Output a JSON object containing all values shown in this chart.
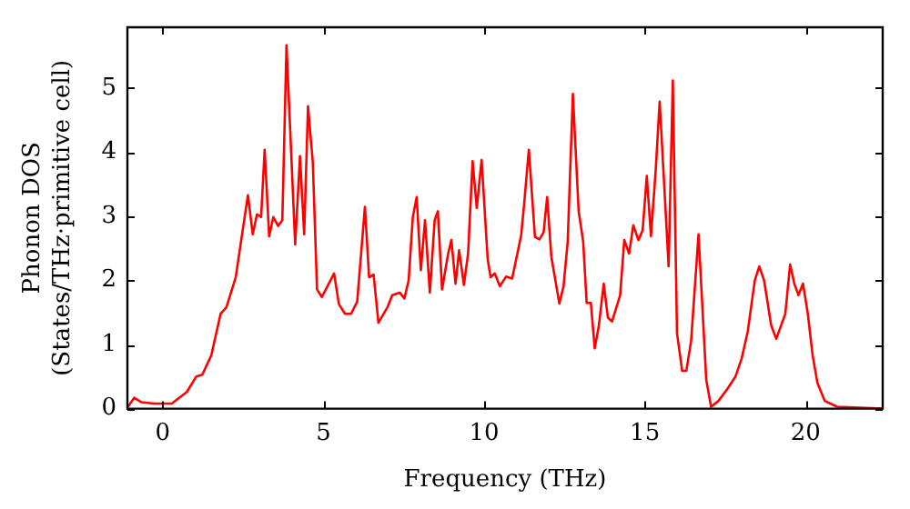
{
  "chart_data": {
    "type": "line",
    "xlabel": "Frequency (THz)",
    "ylabel": "Phonon DOS\n(States/THz·primitive cell)",
    "xlim": [
      -1.1,
      22.4
    ],
    "ylim": [
      0,
      5.95
    ],
    "xticks": [
      0,
      5,
      10,
      15,
      20
    ],
    "yticks": [
      0,
      1,
      2,
      3,
      4,
      5
    ],
    "marker": "none",
    "line_style": "solid",
    "legend": false,
    "series": [
      {
        "color": "#ff0000",
        "x": [
          -1.08,
          -0.89,
          -0.66,
          -0.28,
          0.28,
          0.75,
          1.04,
          1.23,
          1.51,
          1.8,
          1.98,
          2.27,
          2.65,
          2.8,
          2.93,
          3.06,
          3.17,
          3.31,
          3.44,
          3.59,
          3.72,
          3.85,
          4.12,
          4.27,
          4.4,
          4.52,
          4.67,
          4.8,
          4.95,
          5.33,
          5.48,
          5.67,
          5.86,
          6.05,
          6.29,
          6.42,
          6.56,
          6.71,
          6.99,
          7.14,
          7.37,
          7.52,
          7.65,
          7.78,
          7.9,
          8.03,
          8.16,
          8.31,
          8.46,
          8.56,
          8.69,
          8.88,
          8.98,
          9.11,
          9.22,
          9.37,
          9.5,
          9.64,
          9.77,
          9.92,
          10.11,
          10.2,
          10.33,
          10.49,
          10.68,
          10.87,
          11.15,
          11.24,
          11.39,
          11.58,
          11.72,
          11.85,
          11.96,
          12.09,
          12.34,
          12.47,
          12.6,
          12.76,
          12.94,
          13.08,
          13.19,
          13.32,
          13.44,
          13.57,
          13.72,
          13.85,
          13.98,
          14.23,
          14.36,
          14.51,
          14.64,
          14.8,
          14.93,
          15.06,
          15.19,
          15.34,
          15.46,
          15.74,
          15.87,
          16.0,
          16.16,
          16.29,
          16.44,
          16.67,
          16.91,
          17.06,
          17.29,
          17.57,
          17.82,
          18.01,
          18.2,
          18.42,
          18.56,
          18.71,
          18.93,
          19.09,
          19.24,
          19.37,
          19.52,
          19.65,
          19.78,
          19.92,
          20.07,
          20.22,
          20.37,
          20.6,
          20.98,
          22.4
        ],
        "values": [
          0.03,
          0.17,
          0.1,
          0.08,
          0.08,
          0.26,
          0.5,
          0.53,
          0.83,
          1.48,
          1.58,
          2.05,
          3.33,
          2.72,
          3.03,
          2.99,
          4.04,
          2.69,
          2.99,
          2.85,
          2.94,
          5.67,
          2.56,
          3.94,
          2.72,
          4.72,
          3.83,
          1.86,
          1.74,
          2.11,
          1.63,
          1.48,
          1.48,
          1.67,
          3.15,
          2.05,
          2.09,
          1.34,
          1.58,
          1.77,
          1.81,
          1.72,
          2.0,
          2.99,
          3.3,
          2.16,
          2.94,
          1.81,
          2.94,
          3.08,
          1.86,
          2.42,
          2.63,
          1.95,
          2.47,
          1.93,
          2.42,
          3.86,
          3.13,
          3.88,
          2.33,
          2.05,
          2.11,
          1.91,
          2.06,
          2.03,
          2.7,
          3.17,
          4.04,
          2.68,
          2.64,
          2.75,
          3.3,
          2.37,
          1.64,
          1.91,
          2.61,
          4.91,
          3.08,
          2.61,
          1.65,
          1.65,
          0.94,
          1.3,
          1.95,
          1.42,
          1.36,
          1.77,
          2.63,
          2.42,
          2.86,
          2.63,
          2.78,
          3.63,
          2.69,
          3.74,
          4.79,
          2.22,
          5.12,
          1.18,
          0.59,
          0.59,
          1.06,
          2.72,
          0.45,
          0.03,
          0.12,
          0.31,
          0.5,
          0.78,
          1.2,
          2.0,
          2.22,
          2.0,
          1.3,
          1.09,
          1.3,
          1.48,
          2.25,
          1.95,
          1.77,
          1.95,
          1.48,
          0.83,
          0.4,
          0.12,
          0.03,
          0
        ]
      }
    ]
  }
}
